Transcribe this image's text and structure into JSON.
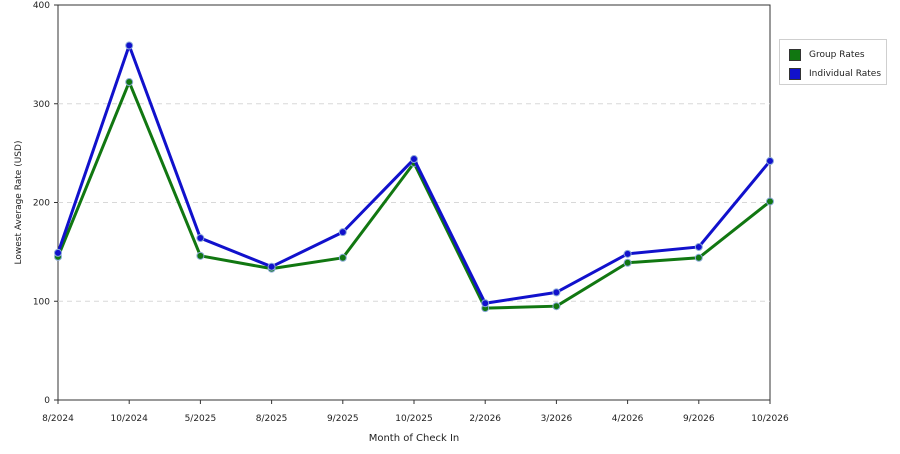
{
  "chart_data": {
    "type": "line",
    "title": "",
    "xlabel": "Month of Check In",
    "ylabel": "Lowest Average Rate (USD)",
    "ylim": [
      0,
      400
    ],
    "yticks": [
      "0",
      "100",
      "200",
      "300",
      "400"
    ],
    "categories": [
      "8/2024",
      "10/2024",
      "5/2025",
      "8/2025",
      "9/2025",
      "10/2025",
      "2/2026",
      "3/2026",
      "4/2026",
      "9/2026",
      "10/2026"
    ],
    "series": [
      {
        "name": "Group Rates",
        "color": "#117711",
        "values": [
          145,
          322,
          146,
          133,
          144,
          240,
          93,
          95,
          139,
          144,
          201
        ]
      },
      {
        "name": "Individual Rates",
        "color": "#1111cc",
        "values": [
          149,
          359,
          164,
          135,
          170,
          244,
          98,
          109,
          148,
          155,
          242
        ]
      }
    ],
    "grid": "horizontal dashed",
    "legend_position": "right"
  }
}
